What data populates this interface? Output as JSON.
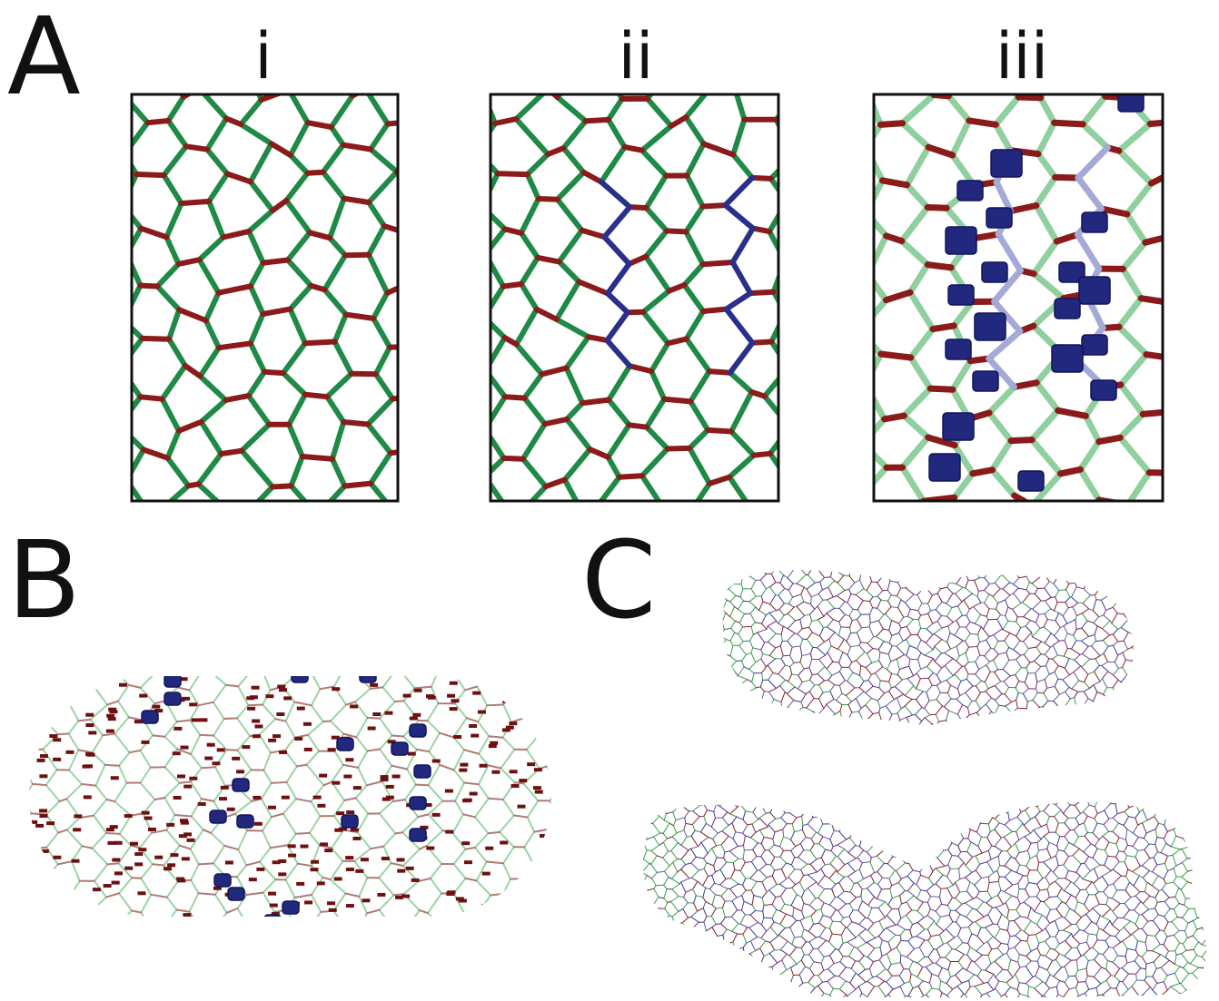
{
  "panel_a": {
    "label": "A",
    "subpanels": [
      "i",
      "ii",
      "iii"
    ]
  },
  "panel_b": {
    "label": "B"
  },
  "panel_c": {
    "label": "C"
  }
}
